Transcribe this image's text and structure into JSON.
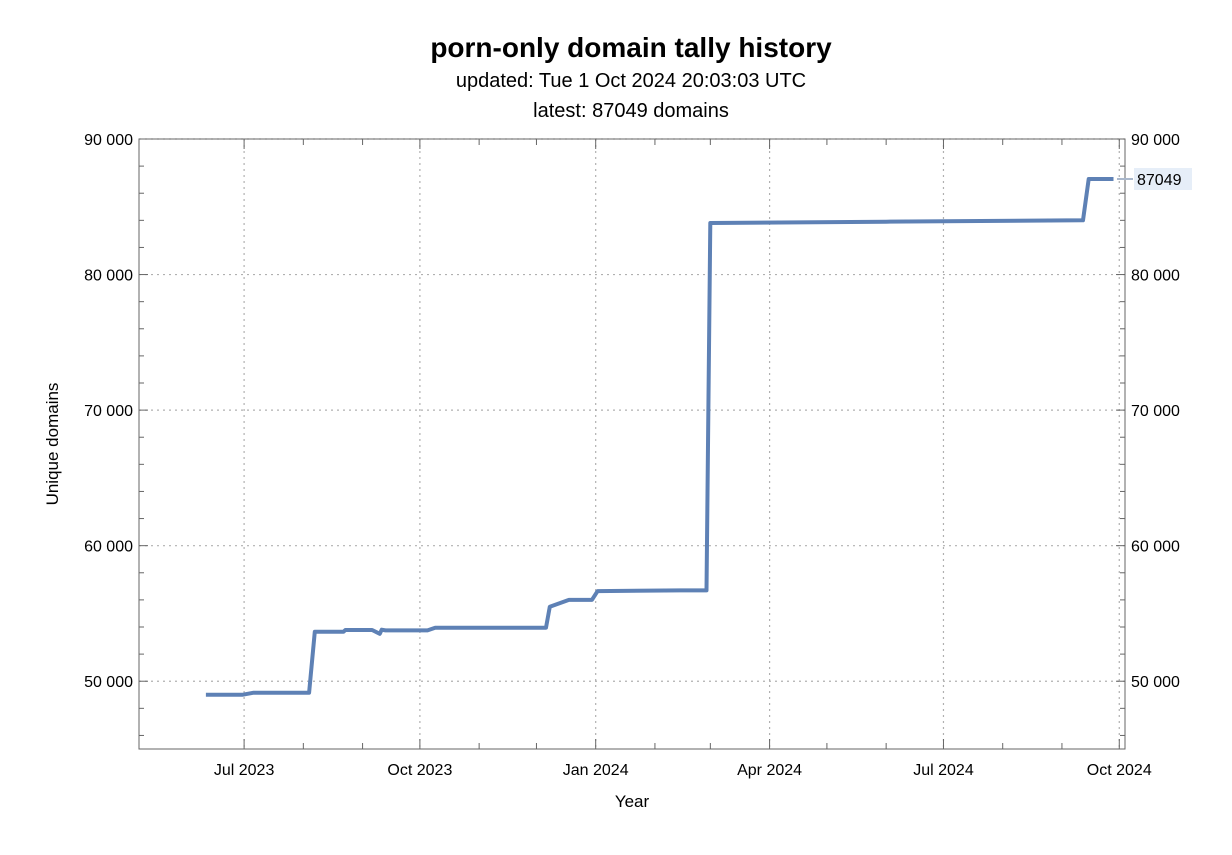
{
  "colors": {
    "series": "#5e81b5",
    "grid": "#b0b0b0",
    "frame": "#666666",
    "badge": "#e6eef8"
  },
  "chart_data": {
    "type": "line",
    "title": "porn-only domain tally history",
    "subtitle_updated": "updated: Tue 1 Oct 2024 20:03:03 UTC",
    "subtitle_latest": "latest: 87049 domains",
    "xlabel": "Year",
    "ylabel": "Unique domains",
    "ylim": [
      45000,
      90000
    ],
    "xlim": [
      "2023-05-07",
      "2024-10-04"
    ],
    "x_ticks": [
      {
        "date": "2023-07-01",
        "label": "Jul 2023"
      },
      {
        "date": "2023-10-01",
        "label": "Oct 2023"
      },
      {
        "date": "2024-01-01",
        "label": "Jan 2024"
      },
      {
        "date": "2024-04-01",
        "label": "Apr 2024"
      },
      {
        "date": "2024-07-01",
        "label": "Jul 2024"
      },
      {
        "date": "2024-10-01",
        "label": "Oct 2024"
      }
    ],
    "x_minor_ticks": [
      "2023-08-01",
      "2023-09-01",
      "2023-11-01",
      "2023-12-01",
      "2024-02-01",
      "2024-03-01",
      "2024-05-01",
      "2024-06-01",
      "2024-08-01",
      "2024-09-01"
    ],
    "y_ticks": [
      {
        "value": 50000,
        "label": "50 000"
      },
      {
        "value": 60000,
        "label": "60 000"
      },
      {
        "value": 70000,
        "label": "70 000"
      },
      {
        "value": 80000,
        "label": "80 000"
      },
      {
        "value": 90000,
        "label": "90 000"
      }
    ],
    "grid": true,
    "end_label": "87049",
    "series": [
      {
        "x": [
          "2023-06-11",
          "2023-06-30",
          "2023-07-06",
          "2023-08-04",
          "2023-08-07",
          "2023-08-22",
          "2023-08-23",
          "2023-09-06",
          "2023-09-10",
          "2023-09-11",
          "2023-09-13",
          "2023-10-05",
          "2023-10-09",
          "2023-12-06",
          "2023-12-08",
          "2023-12-18",
          "2023-12-30",
          "2024-01-02",
          "2024-02-14",
          "2024-02-28",
          "2024-03-01",
          "2024-06-01",
          "2024-09-12",
          "2024-09-15",
          "2024-09-28"
        ],
        "y": [
          49000,
          49000,
          49150,
          49150,
          53650,
          53650,
          53780,
          53780,
          53500,
          53800,
          53750,
          53750,
          53950,
          53950,
          55500,
          56000,
          56000,
          56650,
          56700,
          56700,
          83800,
          83900,
          84000,
          87049,
          87049
        ]
      }
    ]
  }
}
